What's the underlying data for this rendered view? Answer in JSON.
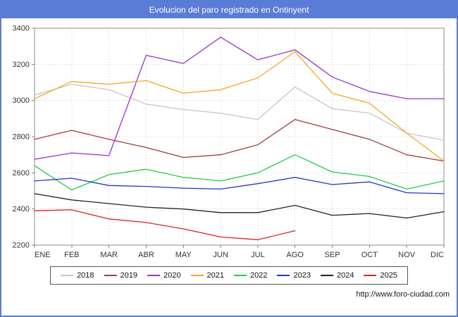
{
  "title": "Evolucion del paro registrado en Ontinyent",
  "footer": {
    "url": "http://www.foro-ciudad.com"
  },
  "colors": {
    "frame_border": "#5b7cd6",
    "title_bg": "#5b7cd6",
    "title_text": "#ffffff",
    "grid": "#c8c8c8",
    "axis": "#888888",
    "tick_text": "#333333"
  },
  "chart_data": {
    "type": "line",
    "title": "Evolucion del paro registrado en Ontinyent",
    "xlabel": "",
    "ylabel": "",
    "ylim": [
      2200,
      3400
    ],
    "yticks": [
      2200,
      2400,
      2600,
      2800,
      3000,
      3200,
      3400
    ],
    "grid": true,
    "legend_position": "bottom",
    "categories": [
      "ENE",
      "FEB",
      "MAR",
      "ABR",
      "MAY",
      "JUN",
      "JUL",
      "AGO",
      "SEP",
      "OCT",
      "NOV",
      "DIC"
    ],
    "series": [
      {
        "name": "2018",
        "color": "#c5c5c5",
        "values": [
          3030,
          3090,
          3060,
          2980,
          2950,
          2930,
          2895,
          3075,
          2955,
          2930,
          2820,
          2780
        ]
      },
      {
        "name": "2019",
        "color": "#a03c3c",
        "values": [
          2785,
          2835,
          2785,
          2740,
          2685,
          2700,
          2755,
          2895,
          2840,
          2785,
          2700,
          2665
        ]
      },
      {
        "name": "2020",
        "color": "#9933cc",
        "values": [
          2675,
          2710,
          2695,
          3250,
          3205,
          3350,
          3225,
          3280,
          3130,
          3050,
          3010,
          3010
        ]
      },
      {
        "name": "2021",
        "color": "#f5a623",
        "values": [
          3010,
          3105,
          3090,
          3110,
          3040,
          3060,
          3125,
          3270,
          3040,
          2985,
          2820,
          2665
        ]
      },
      {
        "name": "2022",
        "color": "#22cc44",
        "values": [
          2640,
          2505,
          2590,
          2620,
          2575,
          2555,
          2600,
          2700,
          2605,
          2580,
          2510,
          2555
        ]
      },
      {
        "name": "2023",
        "color": "#2233cc",
        "values": [
          2555,
          2570,
          2530,
          2525,
          2515,
          2510,
          2540,
          2575,
          2535,
          2550,
          2490,
          2485
        ]
      },
      {
        "name": "2024",
        "color": "#222222",
        "values": [
          2485,
          2450,
          2430,
          2410,
          2400,
          2380,
          2380,
          2420,
          2365,
          2375,
          2350,
          2385
        ]
      },
      {
        "name": "2025",
        "color": "#e02020",
        "values": [
          2390,
          2395,
          2345,
          2325,
          2290,
          2245,
          2230,
          2280
        ]
      }
    ]
  }
}
